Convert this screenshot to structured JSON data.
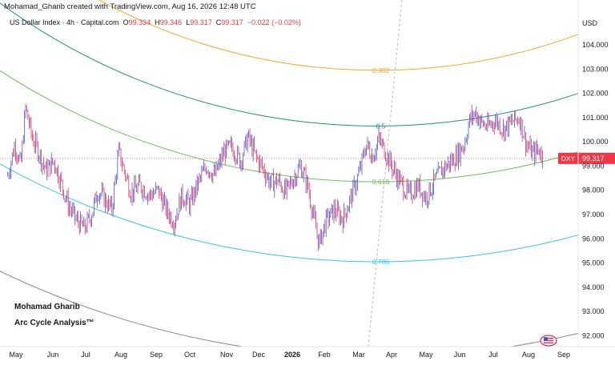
{
  "header": {
    "credit": "Mohamad_Gharib created with TradingView.com, Aug 16, 2026 12:48 UTC",
    "symbol": "US Dollar Index · 4h · Capital.com",
    "ohlc": {
      "open_label": "O",
      "open": "99.334",
      "high_label": "H",
      "high": "99.346",
      "low_label": "L",
      "low": "99.317",
      "close_label": "C",
      "close": "99.317",
      "change": "−0.022 (−0.02%)"
    }
  },
  "watermark": {
    "author": "Mohamad Gharib",
    "title": "Arc Cycle Analysis™"
  },
  "colors": {
    "up_candle": "#4a57d6",
    "down_candle": "#e0365a",
    "arc_0382": "#f5a623",
    "arc_05": "#1f8f86",
    "arc_0618": "#6cbf5a",
    "arc_0786": "#35c6e0",
    "arc_base": "#888888",
    "price_badge": "#f23645"
  },
  "chart_data": {
    "type": "candlestick",
    "instrument": "DXY",
    "currency_label": "USD",
    "timeframe": "4h",
    "last_price": 99.317,
    "last_price_label": "99.317",
    "price_badge_label": "DXY",
    "y_range": [
      91.55,
      105.85
    ],
    "y_ticks": [
      "104.000",
      "103.000",
      "102.000",
      "101.000",
      "100.000",
      "99.000",
      "98.000",
      "97.000",
      "96.000",
      "95.000",
      "94.000",
      "93.000",
      "92.000"
    ],
    "x_ticks": [
      {
        "label": "May",
        "bold": false
      },
      {
        "label": "Jun",
        "bold": false
      },
      {
        "label": "Jul",
        "bold": false
      },
      {
        "label": "Aug",
        "bold": false
      },
      {
        "label": "Sep",
        "bold": false
      },
      {
        "label": "Oct",
        "bold": false
      },
      {
        "label": "Nov",
        "bold": false
      },
      {
        "label": "Dec",
        "bold": false
      },
      {
        "label": "2026",
        "bold": true
      },
      {
        "label": "Feb",
        "bold": false
      },
      {
        "label": "Mar",
        "bold": false
      },
      {
        "label": "Apr",
        "bold": false
      },
      {
        "label": "May",
        "bold": false
      },
      {
        "label": "Jun",
        "bold": false
      },
      {
        "label": "Jul",
        "bold": false
      },
      {
        "label": "Aug",
        "bold": false
      },
      {
        "label": "Sep",
        "bold": false
      }
    ],
    "price_path": [
      [
        "2025-04-24",
        98.6
      ],
      [
        "2025-04-30",
        99.9
      ],
      [
        "2025-05-05",
        99.0
      ],
      [
        "2025-05-09",
        101.4
      ],
      [
        "2025-05-15",
        100.1
      ],
      [
        "2025-05-20",
        99.6
      ],
      [
        "2025-05-26",
        98.8
      ],
      [
        "2025-06-02",
        99.2
      ],
      [
        "2025-06-08",
        98.4
      ],
      [
        "2025-06-15",
        97.4
      ],
      [
        "2025-06-22",
        96.8
      ],
      [
        "2025-06-30",
        96.4
      ],
      [
        "2025-07-06",
        97.0
      ],
      [
        "2025-07-12",
        98.0
      ],
      [
        "2025-07-18",
        97.6
      ],
      [
        "2025-07-24",
        97.2
      ],
      [
        "2025-07-30",
        99.6
      ],
      [
        "2025-08-04",
        98.8
      ],
      [
        "2025-08-10",
        97.9
      ],
      [
        "2025-08-18",
        98.2
      ],
      [
        "2025-08-26",
        97.8
      ],
      [
        "2025-09-03",
        98.0
      ],
      [
        "2025-09-10",
        97.2
      ],
      [
        "2025-09-17",
        96.7
      ],
      [
        "2025-09-24",
        97.8
      ],
      [
        "2025-10-01",
        97.4
      ],
      [
        "2025-10-08",
        98.3
      ],
      [
        "2025-10-15",
        99.0
      ],
      [
        "2025-10-22",
        98.6
      ],
      [
        "2025-10-30",
        99.6
      ],
      [
        "2025-11-06",
        99.8
      ],
      [
        "2025-11-14",
        99.2
      ],
      [
        "2025-11-21",
        100.2
      ],
      [
        "2025-11-28",
        99.4
      ],
      [
        "2025-12-05",
        98.9
      ],
      [
        "2025-12-12",
        98.3
      ],
      [
        "2025-12-19",
        98.4
      ],
      [
        "2025-12-26",
        97.9
      ],
      [
        "2026-01-02",
        98.5
      ],
      [
        "2026-01-09",
        99.0
      ],
      [
        "2026-01-16",
        98.2
      ],
      [
        "2026-01-22",
        96.8
      ],
      [
        "2026-01-27",
        95.8
      ],
      [
        "2026-02-02",
        96.7
      ],
      [
        "2026-02-09",
        97.2
      ],
      [
        "2026-02-16",
        96.8
      ],
      [
        "2026-02-24",
        97.9
      ],
      [
        "2026-03-02",
        98.8
      ],
      [
        "2026-03-08",
        99.9
      ],
      [
        "2026-03-14",
        99.4
      ],
      [
        "2026-03-20",
        100.1
      ],
      [
        "2026-03-26",
        99.6
      ],
      [
        "2026-04-02",
        98.9
      ],
      [
        "2026-04-09",
        98.3
      ],
      [
        "2026-04-16",
        97.8
      ],
      [
        "2026-04-24",
        98.2
      ],
      [
        "2026-05-01",
        97.7
      ],
      [
        "2026-05-08",
        98.3
      ],
      [
        "2026-05-15",
        98.8
      ],
      [
        "2026-05-22",
        99.1
      ],
      [
        "2026-05-29",
        99.4
      ],
      [
        "2026-06-05",
        99.9
      ],
      [
        "2026-06-10",
        100.9
      ],
      [
        "2026-06-15",
        101.2
      ],
      [
        "2026-06-20",
        100.8
      ],
      [
        "2026-06-26",
        100.6
      ],
      [
        "2026-07-03",
        100.9
      ],
      [
        "2026-07-10",
        100.5
      ],
      [
        "2026-07-17",
        100.8
      ],
      [
        "2026-07-24",
        101.0
      ],
      [
        "2026-07-30",
        99.9
      ],
      [
        "2026-08-05",
        99.5
      ],
      [
        "2026-08-10",
        99.7
      ],
      [
        "2026-08-14",
        99.317
      ]
    ],
    "arcs": [
      {
        "label": "0.382",
        "bottom": 102.95,
        "bottom_date": "2026-03-18"
      },
      {
        "label": "0.5",
        "bottom": 100.65,
        "bottom_date": "2026-03-18"
      },
      {
        "label": "0.618",
        "bottom": 98.35,
        "bottom_date": "2026-03-18"
      },
      {
        "label": "0.786",
        "bottom": 95.05,
        "bottom_date": "2026-03-18"
      },
      {
        "label": "",
        "bottom": null,
        "bottom_date": "2026-03-18"
      }
    ],
    "vertical_marker_dates": [
      "2026-03-10",
      "2026-04-10"
    ]
  }
}
